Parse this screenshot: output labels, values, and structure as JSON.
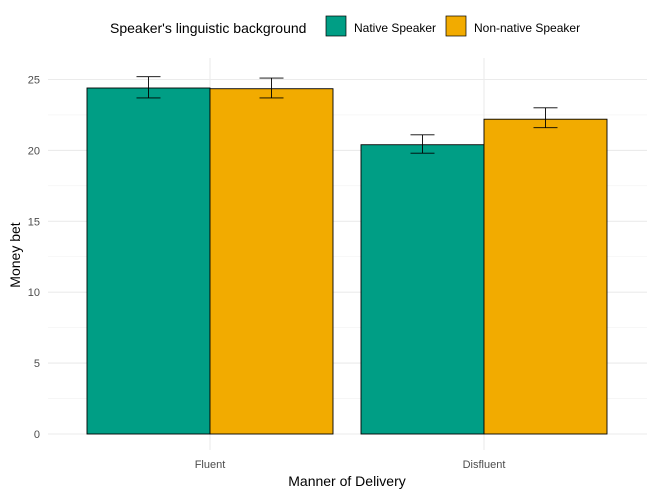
{
  "chart_data": {
    "type": "bar",
    "categories": [
      "Fluent",
      "Disfluent"
    ],
    "series": [
      {
        "name": "Native Speaker",
        "color": "#009E85",
        "values": [
          24.4,
          20.4
        ],
        "error_low": [
          23.7,
          19.8
        ],
        "error_high": [
          25.2,
          21.1
        ]
      },
      {
        "name": "Non-native Speaker",
        "color": "#F2AB00",
        "values": [
          24.35,
          22.2
        ],
        "error_low": [
          23.7,
          21.6
        ],
        "error_high": [
          25.1,
          23.0
        ]
      }
    ],
    "xlabel": "Manner of Delivery",
    "ylabel": "Money bet",
    "ylim": [
      0,
      25
    ],
    "yticks": [
      0,
      5,
      10,
      15,
      20,
      25
    ],
    "grid": true,
    "legend": {
      "title": "Speaker's linguistic background",
      "position": "top"
    }
  }
}
